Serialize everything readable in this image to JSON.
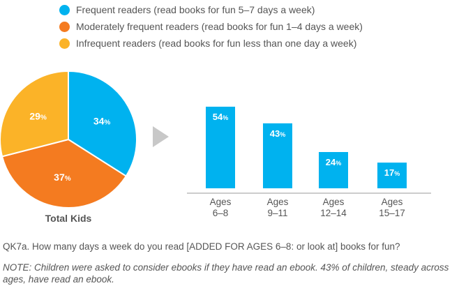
{
  "legend": [
    {
      "label": "Frequent readers (read books for fun 5–7 days a week)",
      "color": "#00b2ef"
    },
    {
      "label": "Moderately frequent readers (read books for fun 1–4 days a week)",
      "color": "#f47b20"
    },
    {
      "label": "Infrequent readers (read books for fun less than one day a week)",
      "color": "#fbb328"
    }
  ],
  "chart_data": [
    {
      "type": "pie",
      "xlabel": "Total Kids",
      "categories": [
        "Frequent readers",
        "Moderately frequent readers",
        "Infrequent readers"
      ],
      "values": [
        34,
        37,
        29
      ],
      "value_labels": [
        "34%",
        "37%",
        "29%"
      ],
      "colors": [
        "#00b2ef",
        "#f47b20",
        "#fbb328"
      ]
    },
    {
      "type": "bar",
      "series_name": "Frequent readers",
      "categories": [
        "Ages 6–8",
        "Ages 9–11",
        "Ages 12–14",
        "Ages 15–17"
      ],
      "category_lines": [
        [
          "Ages",
          "6–8"
        ],
        [
          "Ages",
          "9–11"
        ],
        [
          "Ages",
          "12–14"
        ],
        [
          "Ages",
          "15–17"
        ]
      ],
      "values": [
        54,
        43,
        24,
        17
      ],
      "value_labels": [
        "54%",
        "43%",
        "24%",
        "17%"
      ],
      "color": "#00b2ef",
      "ylim": [
        0,
        60
      ]
    }
  ],
  "question": "QK7a. How many days a week do you read  [ADDED FOR AGES 6–8: or look at] books for fun?",
  "note": "NOTE: Children were asked to consider ebooks if they have read an ebook. 43% of children, steady across ages, have read an ebook."
}
